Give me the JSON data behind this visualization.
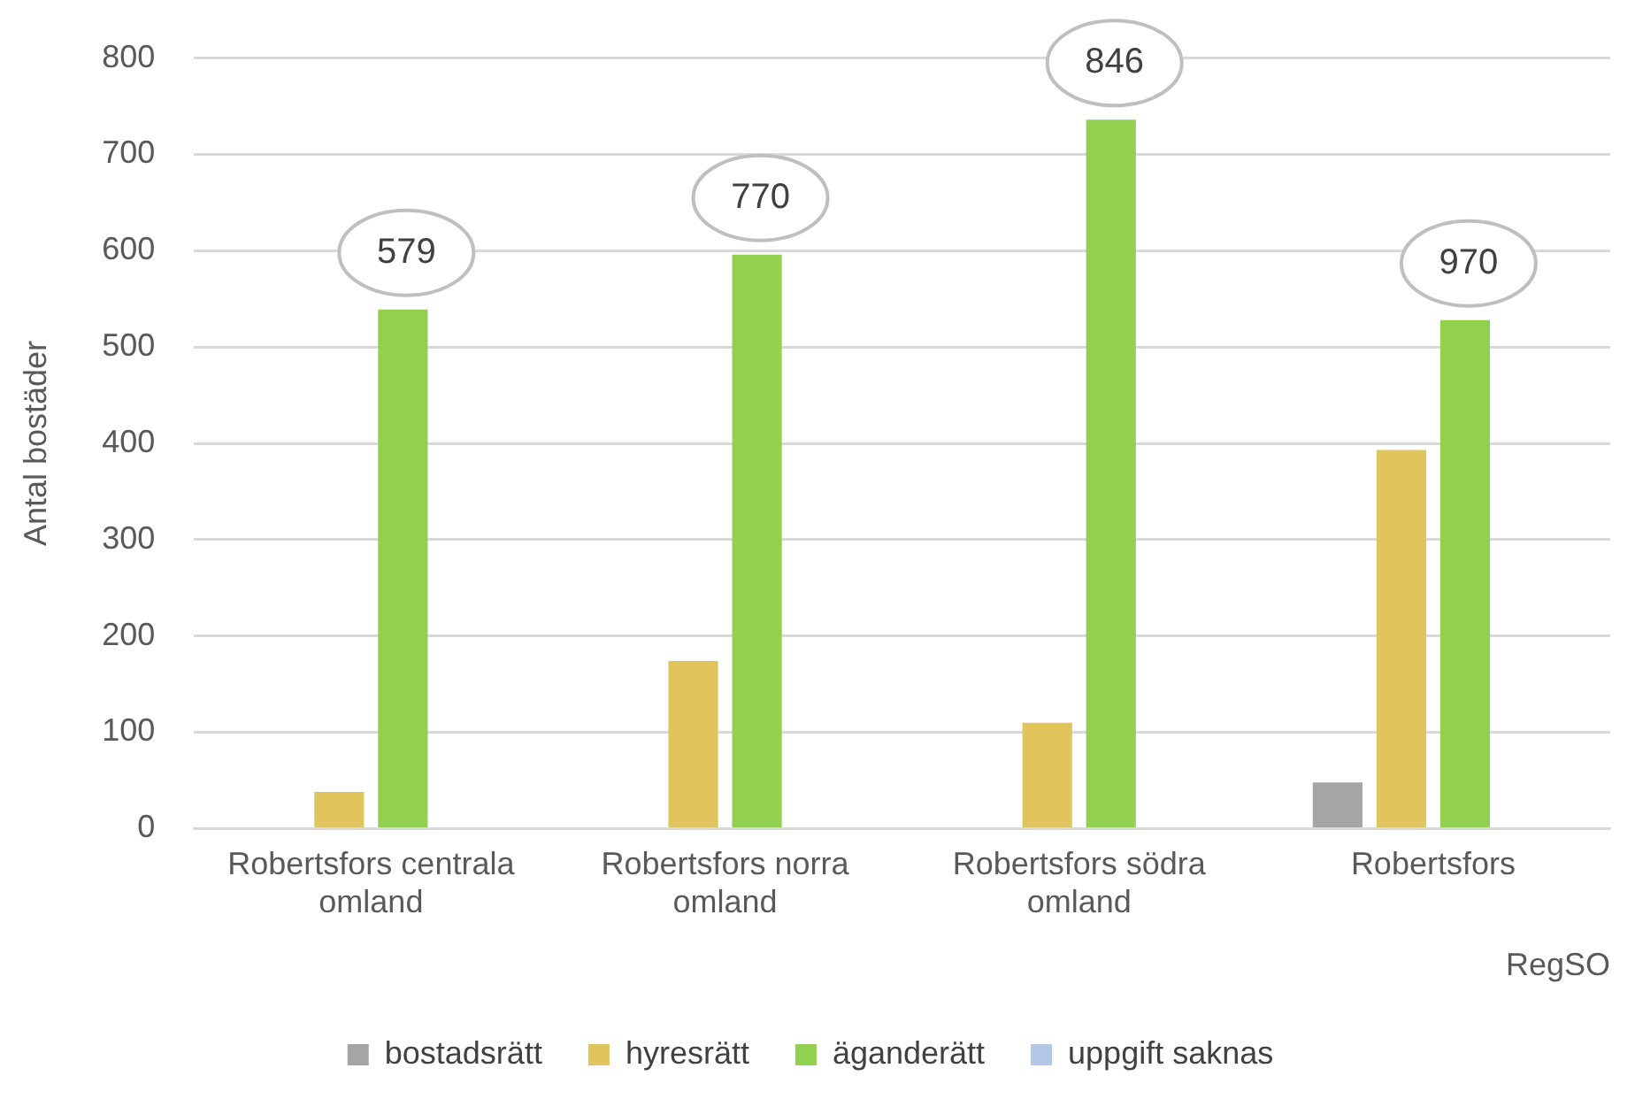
{
  "chart_data": {
    "type": "bar",
    "xlabel": "RegSO",
    "ylabel": "Antal bostäder",
    "categories": [
      "Robertsfors centrala omland",
      "Robertsfors norra omland",
      "Robertsfors södra omland",
      "Robertsfors"
    ],
    "series": [
      {
        "name": "bostadsrätt",
        "color": "#a5a5a5",
        "values": [
          0,
          0,
          0,
          48
        ]
      },
      {
        "name": "hyresrätt",
        "color": "#dfc55c",
        "values": [
          38,
          174,
          110,
          393
        ]
      },
      {
        "name": "äganderätt",
        "color": "#92d050",
        "values": [
          539,
          596,
          736,
          528
        ]
      },
      {
        "name": "uppgift saknas",
        "color": "#b4c7e7",
        "values": [
          0,
          0,
          0,
          0
        ]
      }
    ],
    "totals": [
      "579",
      "770",
      "846",
      "970"
    ],
    "ylim": [
      0,
      800
    ],
    "yticks": [
      0,
      100,
      200,
      300,
      400,
      500,
      600,
      700,
      800
    ],
    "grid": "y",
    "legend": "bottom"
  }
}
